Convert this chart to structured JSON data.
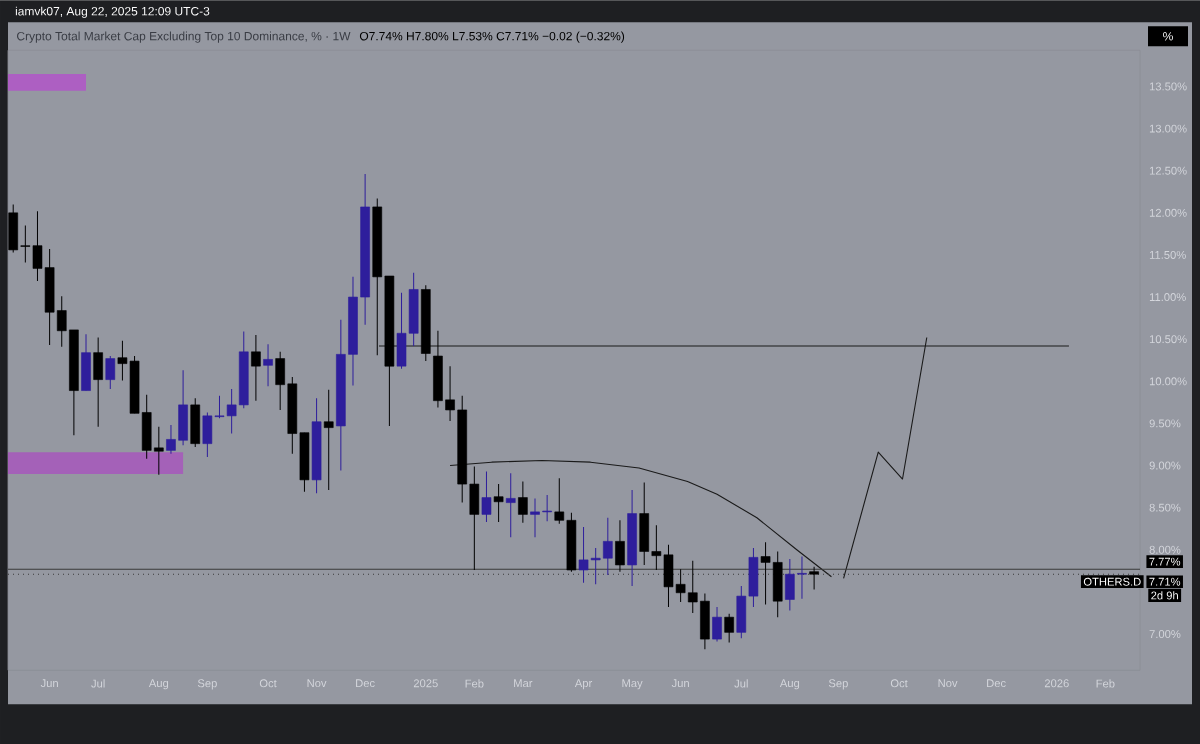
{
  "chart_data": {
    "type": "candlestick",
    "title": "Crypto Total Market Cap Excluding Top 10 Dominance, % · 1W",
    "subtitle": "O7.74% H7.80% L7.53% C7.71% −0.02 (−0.32%)",
    "annotations": [
      "iamvk07, Aug 22, 2025 12:09 UTC-3",
      "%",
      "OTHERS.D",
      "2d 9h"
    ],
    "x": [
      "2024-05-13",
      "2024-05-20",
      "2024-05-27",
      "2024-06-03",
      "2024-06-10",
      "2024-06-17",
      "2024-06-24",
      "2024-07-01",
      "2024-07-08",
      "2024-07-15",
      "2024-07-22",
      "2024-07-29",
      "2024-08-05",
      "2024-08-12",
      "2024-08-19",
      "2024-08-26",
      "2024-09-02",
      "2024-09-09",
      "2024-09-16",
      "2024-09-23",
      "2024-09-30",
      "2024-10-07",
      "2024-10-14",
      "2024-10-21",
      "2024-10-28",
      "2024-11-04",
      "2024-11-11",
      "2024-11-18",
      "2024-11-25",
      "2024-12-02",
      "2024-12-09",
      "2024-12-16",
      "2024-12-23",
      "2024-12-30",
      "2025-01-06",
      "2025-01-13",
      "2025-01-20",
      "2025-01-27",
      "2025-02-03",
      "2025-02-10",
      "2025-02-17",
      "2025-02-24",
      "2025-03-03",
      "2025-03-10",
      "2025-03-17",
      "2025-03-24",
      "2025-03-31",
      "2025-04-07",
      "2025-04-14",
      "2025-04-21",
      "2025-04-28",
      "2025-05-05",
      "2025-05-12",
      "2025-05-19",
      "2025-05-26",
      "2025-06-02",
      "2025-06-09",
      "2025-06-16",
      "2025-06-23",
      "2025-06-30",
      "2025-07-07",
      "2025-07-14",
      "2025-07-21",
      "2025-07-28",
      "2025-08-04",
      "2025-08-11",
      "2025-08-18"
    ],
    "ohlc": [
      [
        12.0,
        12.1,
        11.53,
        11.56
      ],
      [
        11.61,
        11.85,
        11.41,
        11.6
      ],
      [
        11.61,
        12.02,
        11.19,
        11.34
      ],
      [
        11.35,
        11.57,
        10.43,
        10.82
      ],
      [
        10.84,
        11.01,
        10.41,
        10.6
      ],
      [
        10.61,
        10.61,
        9.36,
        9.89
      ],
      [
        9.89,
        10.56,
        9.89,
        10.34
      ],
      [
        10.34,
        10.52,
        9.46,
        10.02
      ],
      [
        10.02,
        10.3,
        9.91,
        10.27
      ],
      [
        10.28,
        10.48,
        10.01,
        10.21
      ],
      [
        10.24,
        10.3,
        9.62,
        9.62
      ],
      [
        9.63,
        9.84,
        9.08,
        9.18
      ],
      [
        9.21,
        9.46,
        8.89,
        9.17
      ],
      [
        9.18,
        9.48,
        9.14,
        9.31
      ],
      [
        9.3,
        10.13,
        9.24,
        9.72
      ],
      [
        9.72,
        9.8,
        9.22,
        9.26
      ],
      [
        9.26,
        9.63,
        9.1,
        9.59
      ],
      [
        9.58,
        9.83,
        9.56,
        9.59
      ],
      [
        9.59,
        9.91,
        9.38,
        9.72
      ],
      [
        9.72,
        10.59,
        9.68,
        10.35
      ],
      [
        10.35,
        10.55,
        9.77,
        10.18
      ],
      [
        10.19,
        10.44,
        9.94,
        10.26
      ],
      [
        10.27,
        10.35,
        9.66,
        9.96
      ],
      [
        9.97,
        10.05,
        9.14,
        9.38
      ],
      [
        9.39,
        9.39,
        8.69,
        8.83
      ],
      [
        8.83,
        9.8,
        8.67,
        9.52
      ],
      [
        9.52,
        9.9,
        8.71,
        9.45
      ],
      [
        9.47,
        10.73,
        8.94,
        10.32
      ],
      [
        10.32,
        11.24,
        9.95,
        11.0
      ],
      [
        11.0,
        12.46,
        10.67,
        12.07
      ],
      [
        12.07,
        12.17,
        10.31,
        11.24
      ],
      [
        11.25,
        11.25,
        9.47,
        10.18
      ],
      [
        10.18,
        11.05,
        10.15,
        10.57
      ],
      [
        10.57,
        11.29,
        10.42,
        11.09
      ],
      [
        11.09,
        11.14,
        10.24,
        10.33
      ],
      [
        10.3,
        10.6,
        9.69,
        9.77
      ],
      [
        9.78,
        10.18,
        9.53,
        9.66
      ],
      [
        9.66,
        9.83,
        8.56,
        8.78
      ],
      [
        8.78,
        8.99,
        7.76,
        8.42
      ],
      [
        8.42,
        8.93,
        8.33,
        8.62
      ],
      [
        8.63,
        8.78,
        8.33,
        8.57
      ],
      [
        8.56,
        8.91,
        8.15,
        8.61
      ],
      [
        8.62,
        8.81,
        8.32,
        8.42
      ],
      [
        8.42,
        8.61,
        8.15,
        8.45
      ],
      [
        8.45,
        8.65,
        8.34,
        8.46
      ],
      [
        8.45,
        8.85,
        8.31,
        8.35
      ],
      [
        8.35,
        8.44,
        7.74,
        7.76
      ],
      [
        7.76,
        8.27,
        7.61,
        7.88
      ],
      [
        7.88,
        8.02,
        7.59,
        7.9
      ],
      [
        7.9,
        8.38,
        7.7,
        8.1
      ],
      [
        8.1,
        8.35,
        7.74,
        7.82
      ],
      [
        7.82,
        8.71,
        7.57,
        8.43
      ],
      [
        8.43,
        8.8,
        7.82,
        7.98
      ],
      [
        7.98,
        8.29,
        7.76,
        7.93
      ],
      [
        7.94,
        8.06,
        7.32,
        7.56
      ],
      [
        7.59,
        7.77,
        7.38,
        7.49
      ],
      [
        7.49,
        7.87,
        7.25,
        7.38
      ],
      [
        7.39,
        7.48,
        6.82,
        6.94
      ],
      [
        6.94,
        7.32,
        6.91,
        7.2
      ],
      [
        7.2,
        7.24,
        6.9,
        7.02
      ],
      [
        7.02,
        7.57,
        6.95,
        7.45
      ],
      [
        7.45,
        8.02,
        7.32,
        7.91
      ],
      [
        7.92,
        8.09,
        7.35,
        7.85
      ],
      [
        7.85,
        7.98,
        7.2,
        7.39
      ],
      [
        7.41,
        7.89,
        7.28,
        7.71
      ],
      [
        7.71,
        7.92,
        7.42,
        7.72
      ],
      [
        7.74,
        7.8,
        7.53,
        7.71
      ]
    ],
    "colors": [
      "#000000",
      "#000000",
      "#000000",
      "#000000",
      "#000000",
      "#000000",
      "#2e1e9c",
      "#000000",
      "#2e1e9c",
      "#000000",
      "#000000",
      "#000000",
      "#000000",
      "#2e1e9c",
      "#2e1e9c",
      "#000000",
      "#2e1e9c",
      "#2e1e9c",
      "#2e1e9c",
      "#2e1e9c",
      "#000000",
      "#2e1e9c",
      "#000000",
      "#000000",
      "#000000",
      "#2e1e9c",
      "#000000",
      "#2e1e9c",
      "#2e1e9c",
      "#2e1e9c",
      "#000000",
      "#000000",
      "#2e1e9c",
      "#2e1e9c",
      "#000000",
      "#000000",
      "#000000",
      "#000000",
      "#000000",
      "#2e1e9c",
      "#000000",
      "#2e1e9c",
      "#000000",
      "#2e1e9c",
      "#2e1e9c",
      "#000000",
      "#000000",
      "#2e1e9c",
      "#2e1e9c",
      "#2e1e9c",
      "#000000",
      "#2e1e9c",
      "#000000",
      "#000000",
      "#000000",
      "#000000",
      "#000000",
      "#000000",
      "#2e1e9c",
      "#000000",
      "#2e1e9c",
      "#2e1e9c",
      "#000000",
      "#000000",
      "#2e1e9c",
      "#2e1e9c",
      "#000000"
    ],
    "series": [
      {
        "type": "line",
        "color": "#ad5fc2",
        "x": [
          "2024-05-10",
          "2024-06-24"
        ],
        "values": [
          13.64,
          13.64
        ],
        "lower": [
          13.45,
          13.45
        ],
        "upper": [
          13.64,
          13.64
        ]
      },
      {
        "type": "line",
        "color": "#a461b8",
        "x": [
          "2024-05-10",
          "2024-08-19"
        ],
        "values": [
          9.15,
          9.15
        ],
        "lower": [
          8.9,
          8.9
        ],
        "upper": [
          9.15,
          9.15
        ]
      },
      {
        "type": "line",
        "color": "#1a1a1a",
        "x": [
          "2024-12-10",
          "2026-01-12"
        ],
        "values": [
          10.42,
          10.42
        ]
      },
      {
        "type": "line",
        "color": "#1a1a1a",
        "x": [
          "2025-01-20",
          "2025-02-13",
          "2025-03-14",
          "2025-04-11",
          "2025-05-09",
          "2025-06-06",
          "2025-06-23",
          "2025-07-16",
          "2025-08-08",
          "2025-08-28"
        ],
        "values": [
          9.0,
          9.04,
          9.06,
          9.04,
          8.97,
          8.81,
          8.66,
          8.38,
          8.0,
          7.68
        ]
      },
      {
        "type": "line",
        "color": "#1a1a1a",
        "x": [
          "2025-09-04",
          "2025-09-24",
          "2025-10-08",
          "2025-10-22"
        ],
        "values": [
          7.66,
          9.16,
          8.84,
          10.52
        ]
      }
    ],
    "ref_lines": [
      {
        "axis": "y",
        "value": 7.77,
        "label": "7.77%",
        "color": "#3a3a3a",
        "line_style": "solid"
      },
      {
        "axis": "y",
        "value": 7.71,
        "label": "7.71%",
        "color": "#3a3a3a",
        "line_style": "dotted"
      }
    ],
    "xlim": [
      "2024-05-10",
      "2026-02-22"
    ],
    "xticks": [
      {
        "value": "2024-06-03",
        "label": "Jun"
      },
      {
        "value": "2024-07-01",
        "label": "Jul"
      },
      {
        "value": "2024-08-05",
        "label": "Aug"
      },
      {
        "value": "2024-09-02",
        "label": "Sep"
      },
      {
        "value": "2024-10-07",
        "label": "Oct"
      },
      {
        "value": "2024-11-04",
        "label": "Nov"
      },
      {
        "value": "2024-12-02",
        "label": "Dec"
      },
      {
        "value": "2025-01-06",
        "label": "2025"
      },
      {
        "value": "2025-02-03",
        "label": "Feb"
      },
      {
        "value": "2025-03-03",
        "label": "Mar"
      },
      {
        "value": "2025-04-07",
        "label": "Apr"
      },
      {
        "value": "2025-05-05",
        "label": "May"
      },
      {
        "value": "2025-06-02",
        "label": "Jun"
      },
      {
        "value": "2025-07-07",
        "label": "Jul"
      },
      {
        "value": "2025-08-04",
        "label": "Aug"
      },
      {
        "value": "2025-09-01",
        "label": "Sep"
      },
      {
        "value": "2025-10-06",
        "label": "Oct"
      },
      {
        "value": "2025-11-03",
        "label": "Nov"
      },
      {
        "value": "2025-12-01",
        "label": "Dec"
      },
      {
        "value": "2026-01-05",
        "label": "2026"
      },
      {
        "value": "2026-02-02",
        "label": "Feb"
      }
    ],
    "ylim": [
      6.57,
      13.93
    ],
    "yticks": [
      {
        "value": 7,
        "label": "7.00%"
      },
      {
        "value": 8,
        "label": "8.00%"
      },
      {
        "value": 8.5,
        "label": "8.50%"
      },
      {
        "value": 9,
        "label": "9.00%"
      },
      {
        "value": 9.5,
        "label": "9.50%"
      },
      {
        "value": 10,
        "label": "10.00%"
      },
      {
        "value": 10.5,
        "label": "10.50%"
      },
      {
        "value": 11,
        "label": "11.00%"
      },
      {
        "value": 11.5,
        "label": "11.50%"
      },
      {
        "value": 12,
        "label": "12.00%"
      },
      {
        "value": 12.5,
        "label": "12.50%"
      },
      {
        "value": 13,
        "label": "13.00%"
      },
      {
        "value": 13.5,
        "label": "13.50%"
      }
    ]
  }
}
